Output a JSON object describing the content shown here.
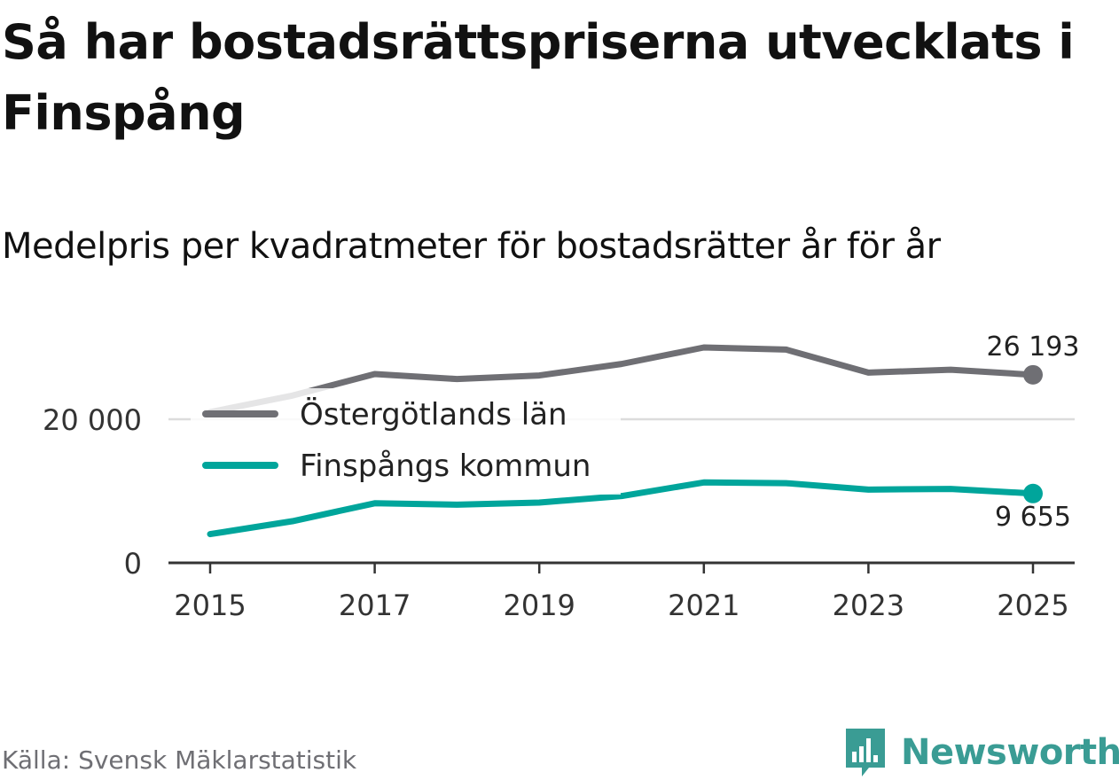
{
  "title": "Så har bostadsrättspriserna utvecklats i Finspång",
  "subtitle": "Medelpris per kvadratmeter för bostadsrätter år för år",
  "source": "Källa: Svensk Mäklarstatistik",
  "brand": {
    "name": "Newsworthy",
    "color": "#3a9c94"
  },
  "chart_data": {
    "type": "line",
    "x": [
      2015,
      2016,
      2017,
      2018,
      2019,
      2020,
      2021,
      2022,
      2023,
      2024,
      2025
    ],
    "x_tick_labels": [
      "2015",
      "2017",
      "2019",
      "2021",
      "2023",
      "2025"
    ],
    "x_tick_values": [
      2015,
      2017,
      2019,
      2021,
      2023,
      2025
    ],
    "y_tick_labels": [
      "0",
      "20 000"
    ],
    "y_tick_values": [
      0,
      20000
    ],
    "ylim": [
      0,
      32000
    ],
    "xlim": [
      2014.5,
      2025.5
    ],
    "grid": true,
    "legend": "top-left",
    "series": [
      {
        "name": "Östergötlands län",
        "color": "#6f6f74",
        "values": [
          21000,
          23300,
          26300,
          25600,
          26100,
          27700,
          30000,
          29700,
          26500,
          26900,
          26193
        ],
        "end_label": "26 193"
      },
      {
        "name": "Finspångs kommun",
        "color": "#00a59b",
        "values": [
          4000,
          5800,
          8300,
          8100,
          8400,
          9300,
          11200,
          11100,
          10200,
          10300,
          9655
        ],
        "end_label": "9 655"
      }
    ]
  }
}
